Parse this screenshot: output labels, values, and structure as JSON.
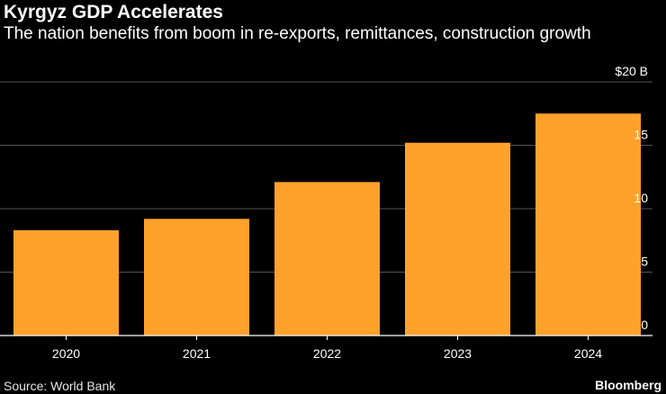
{
  "header": {
    "title": "Kyrgyz GDP Accelerates",
    "subtitle": "The nation benefits from boom in re-exports, remittances, construction growth"
  },
  "footer": {
    "source": "Source: World Bank",
    "brand": "Bloomberg"
  },
  "colors": {
    "background": "#000000",
    "bar": "#ffa12b",
    "grid": "#555555",
    "text": "#ffffff"
  },
  "chart_data": {
    "type": "bar",
    "title": "Kyrgyz GDP Accelerates",
    "subtitle": "The nation benefits from boom in re-exports, remittances, construction growth",
    "categories": [
      "2020",
      "2021",
      "2022",
      "2023",
      "2024"
    ],
    "values": [
      8.3,
      9.2,
      12.1,
      15.2,
      17.5
    ],
    "ylim": [
      0,
      20
    ],
    "yticks": [
      0,
      5,
      10,
      15,
      20
    ],
    "ytick_labels": [
      "0",
      "5",
      "10",
      "15",
      "$20 B"
    ],
    "xlabel": "",
    "ylabel": "",
    "grid": true,
    "y_axis_side": "right"
  }
}
